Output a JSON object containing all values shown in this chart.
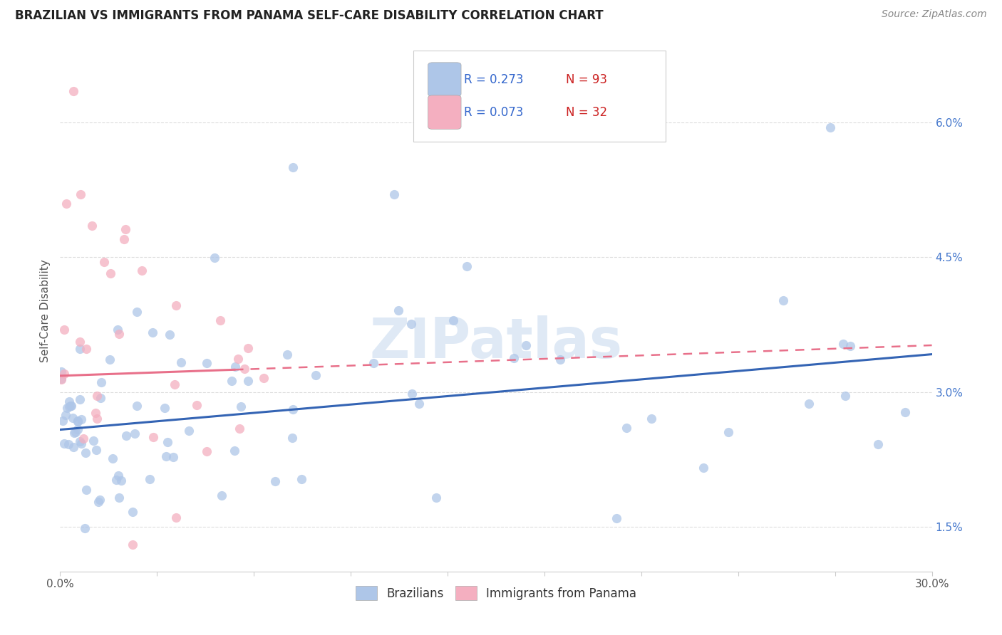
{
  "title": "BRAZILIAN VS IMMIGRANTS FROM PANAMA SELF-CARE DISABILITY CORRELATION CHART",
  "source": "Source: ZipAtlas.com",
  "ylabel": "Self-Care Disability",
  "x_min": 0.0,
  "x_max": 30.0,
  "y_min": 1.0,
  "y_max": 6.8,
  "yticks": [
    1.5,
    3.0,
    4.5,
    6.0
  ],
  "ytick_labels": [
    "1.5%",
    "3.0%",
    "4.5%",
    "6.0%"
  ],
  "legend_r1": "R = 0.273",
  "legend_n1": "N = 93",
  "legend_r2": "R = 0.073",
  "legend_n2": "N = 32",
  "label_brazilians": "Brazilians",
  "label_panama": "Immigrants from Panama",
  "blue_color": "#aec6e8",
  "pink_color": "#f4afc0",
  "blue_line_color": "#3464b4",
  "pink_line_color": "#e8708a",
  "watermark": "ZIPatlas",
  "blue_line_x0": 0.0,
  "blue_line_x1": 30.0,
  "blue_line_y0": 2.58,
  "blue_line_y1": 3.42,
  "pink_line_x0": 0.0,
  "pink_line_x1": 30.0,
  "pink_line_y0": 3.18,
  "pink_line_y1": 3.52,
  "pink_solid_x_end": 6.0,
  "grid_color": "#dddddd",
  "spine_color": "#cccccc",
  "title_fontsize": 12,
  "source_fontsize": 10,
  "axis_label_fontsize": 11,
  "tick_fontsize": 11,
  "legend_fontsize": 12
}
